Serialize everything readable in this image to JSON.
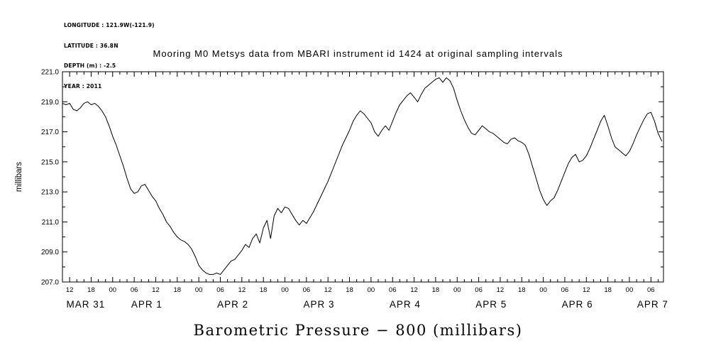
{
  "meta": {
    "longitude": "LONGITUDE : 121.9W(-121.9)",
    "latitude": "LATITUDE : 36.8N",
    "depth": "DEPTH (m) : -2.5",
    "year": "YEAR : 2011"
  },
  "title": "Mooring M0 Metsys data from MBARI instrument id 1424 at original sampling intervals",
  "bottom_title": "Barometric Pressure − 800 (millibars)",
  "chart_data": {
    "type": "line",
    "title": "Mooring M0 Metsys data from MBARI instrument id 1424 at original sampling intervals",
    "xlabel": "Barometric Pressure − 800 (millibars)",
    "ylabel": "millibars",
    "ylim": [
      207.0,
      221.0
    ],
    "ytick_interval": 2.0,
    "ytick_labels": [
      "207.0",
      "209.0",
      "211.0",
      "213.0",
      "215.0",
      "217.0",
      "219.0",
      "221.0"
    ],
    "xlim_hours": [
      10,
      177.5
    ],
    "grid": false,
    "legend": "none",
    "line_color": "#000000",
    "xticks": {
      "t_start": 12,
      "t_step": 6,
      "labels": [
        "12",
        "18",
        "00",
        "06",
        "12",
        "18",
        "00",
        "06",
        "12",
        "18",
        "00",
        "06",
        "12",
        "18",
        "00",
        "06",
        "12",
        "18",
        "00",
        "06",
        "12",
        "18",
        "00",
        "06",
        "12",
        "18",
        "00",
        "06"
      ]
    },
    "date_labels": [
      {
        "t": 16.5,
        "label": "MAR 31"
      },
      {
        "t": 33.5,
        "label": "APR 1"
      },
      {
        "t": 57.5,
        "label": "APR 2"
      },
      {
        "t": 81.5,
        "label": "APR 3"
      },
      {
        "t": 105.5,
        "label": "APR 4"
      },
      {
        "t": 129.5,
        "label": "APR 5"
      },
      {
        "t": 153.5,
        "label": "APR 6"
      },
      {
        "t": 174.5,
        "label": "APR 7"
      }
    ],
    "series": [
      {
        "name": "barometric_pressure_minus_800_millibars",
        "x_start_hour": 10,
        "x_step_hours": 1,
        "x_epoch": "hours since MAR 31 2011 00:00",
        "values": [
          218.9,
          218.8,
          218.9,
          218.5,
          218.4,
          218.6,
          218.9,
          219.0,
          218.8,
          218.9,
          218.7,
          218.4,
          218.0,
          217.4,
          216.7,
          216.1,
          215.4,
          214.7,
          213.9,
          213.2,
          212.9,
          213.0,
          213.4,
          213.5,
          213.1,
          212.7,
          212.4,
          211.9,
          211.5,
          211.0,
          210.7,
          210.3,
          210.0,
          209.8,
          209.7,
          209.5,
          209.2,
          208.7,
          208.1,
          207.8,
          207.6,
          207.5,
          207.5,
          207.6,
          207.5,
          207.8,
          208.1,
          208.4,
          208.5,
          208.8,
          209.1,
          209.5,
          209.3,
          209.9,
          210.2,
          209.6,
          210.6,
          211.1,
          209.9,
          211.4,
          211.9,
          211.6,
          212.0,
          211.9,
          211.5,
          211.1,
          210.8,
          211.1,
          210.9,
          211.3,
          211.7,
          212.2,
          212.7,
          213.2,
          213.7,
          214.3,
          214.9,
          215.5,
          216.1,
          216.6,
          217.1,
          217.7,
          218.1,
          218.4,
          218.2,
          217.9,
          217.6,
          217.0,
          216.7,
          217.1,
          217.4,
          217.1,
          217.7,
          218.3,
          218.8,
          219.1,
          219.4,
          219.6,
          219.3,
          219.0,
          219.5,
          219.9,
          220.1,
          220.3,
          220.5,
          220.6,
          220.3,
          220.6,
          220.4,
          219.9,
          219.1,
          218.4,
          217.8,
          217.3,
          216.9,
          216.8,
          217.1,
          217.4,
          217.2,
          217.0,
          216.9,
          216.7,
          216.5,
          216.3,
          216.2,
          216.5,
          216.6,
          216.4,
          216.3,
          216.1,
          215.5,
          214.7,
          213.9,
          213.1,
          212.5,
          212.1,
          212.4,
          212.6,
          213.1,
          213.7,
          214.3,
          214.9,
          215.3,
          215.5,
          215.0,
          215.1,
          215.4,
          215.9,
          216.5,
          217.1,
          217.7,
          218.1,
          217.4,
          216.6,
          216.0,
          215.8,
          215.6,
          215.4,
          215.7,
          216.2,
          216.8,
          217.3,
          217.8,
          218.2,
          218.3,
          217.7,
          216.9,
          216.4
        ]
      }
    ]
  }
}
